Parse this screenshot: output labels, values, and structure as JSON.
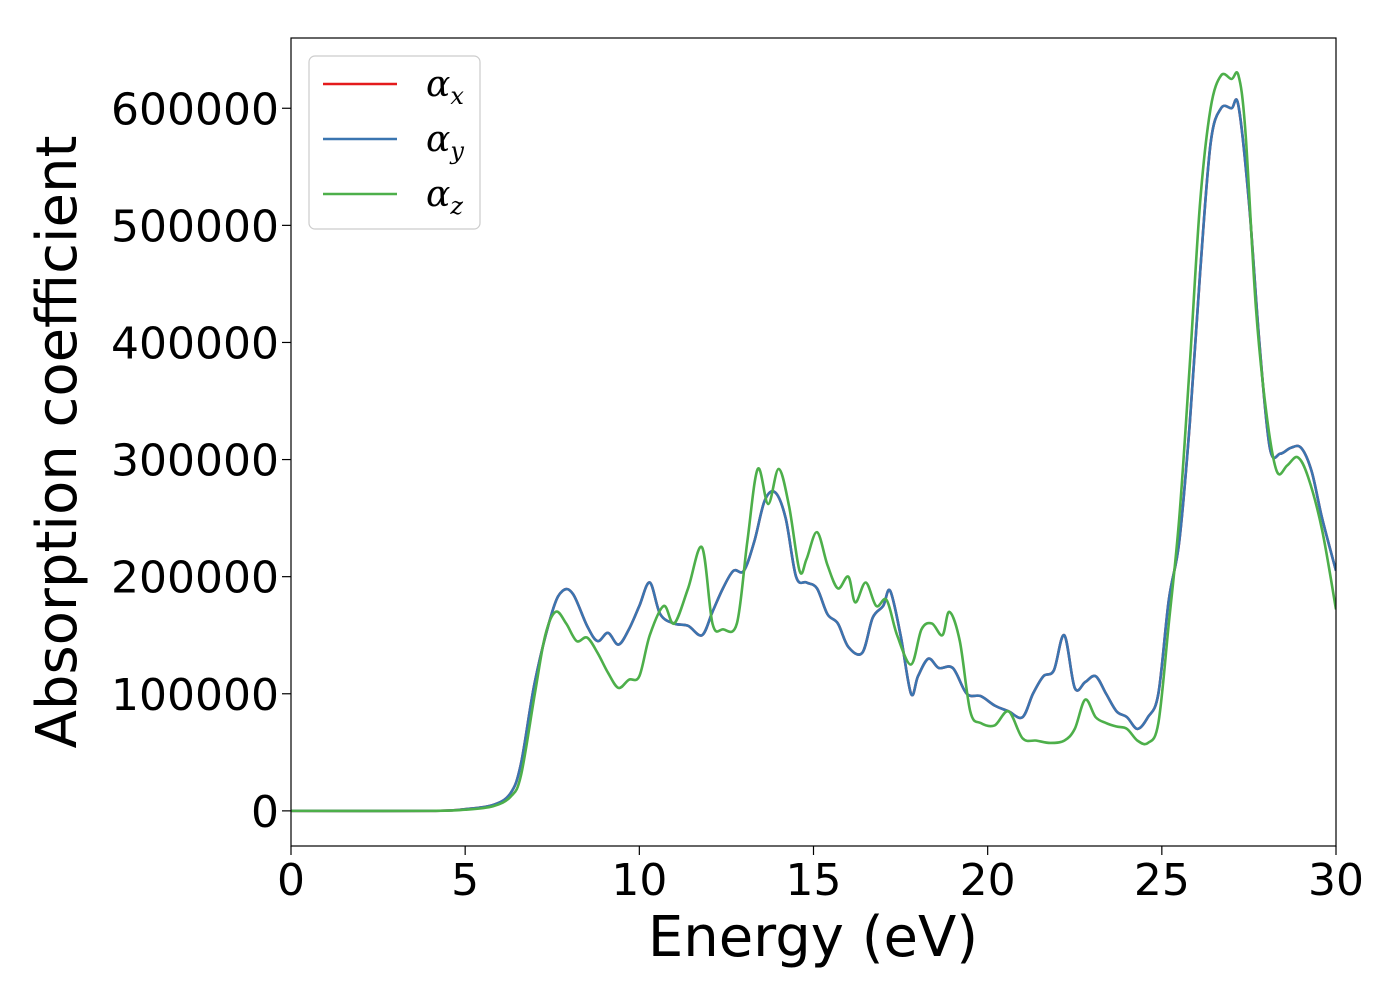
{
  "chart_data": {
    "type": "line",
    "xlabel": "Energy (eV)",
    "ylabel": "Absorption coefficient",
    "xlim": [
      0,
      30
    ],
    "ylim": [
      -30000,
      660000
    ],
    "x_ticks": [
      "0",
      "5",
      "10",
      "15",
      "20",
      "25",
      "30"
    ],
    "y_ticks": [
      "0",
      "100000",
      "200000",
      "300000",
      "400000",
      "500000",
      "600000"
    ],
    "legend_position": "top-left",
    "grid": false,
    "series": [
      {
        "name": "α_x",
        "legend_base": "α",
        "legend_sub": "x",
        "color": "#e41a1c",
        "x": [
          0,
          4,
          5,
          5.8,
          6.3,
          6.6,
          7.0,
          7.5,
          7.8,
          8.1,
          8.5,
          8.8,
          9.1,
          9.4,
          9.7,
          10.0,
          10.3,
          10.6,
          11.0,
          11.4,
          11.8,
          12.1,
          12.4,
          12.7,
          13.0,
          13.3,
          13.6,
          13.9,
          14.2,
          14.5,
          14.8,
          15.1,
          15.4,
          15.7,
          16.0,
          16.4,
          16.7,
          17.0,
          17.2,
          17.5,
          17.8,
          18.0,
          18.3,
          18.6,
          19.0,
          19.4,
          19.8,
          20.2,
          20.6,
          21.0,
          21.3,
          21.6,
          21.9,
          22.2,
          22.5,
          22.8,
          23.1,
          23.4,
          23.7,
          24.0,
          24.3,
          24.6,
          24.9,
          25.2,
          25.5,
          25.8,
          26.1,
          26.4,
          26.7,
          27.0,
          27.2,
          27.5,
          27.8,
          28.1,
          28.4,
          28.7,
          29.0,
          29.3,
          29.6,
          30.0
        ],
        "y": [
          0,
          0,
          1500,
          5000,
          15000,
          40000,
          110000,
          170000,
          188000,
          185000,
          158000,
          145000,
          152000,
          142000,
          155000,
          175000,
          195000,
          168000,
          160000,
          158000,
          150000,
          170000,
          190000,
          205000,
          205000,
          230000,
          265000,
          272000,
          250000,
          200000,
          195000,
          190000,
          168000,
          160000,
          140000,
          135000,
          165000,
          175000,
          188000,
          150000,
          100000,
          115000,
          130000,
          122000,
          122000,
          100000,
          98000,
          90000,
          85000,
          80000,
          100000,
          115000,
          120000,
          150000,
          105000,
          110000,
          115000,
          100000,
          85000,
          80000,
          70000,
          80000,
          100000,
          180000,
          230000,
          330000,
          460000,
          570000,
          600000,
          600000,
          602000,
          520000,
          400000,
          310000,
          305000,
          310000,
          310000,
          290000,
          250000,
          205000
        ]
      },
      {
        "name": "α_y",
        "legend_base": "α",
        "legend_sub": "y",
        "color": "#3a75b0",
        "x": [
          0,
          4,
          5,
          5.8,
          6.3,
          6.6,
          7.0,
          7.5,
          7.8,
          8.1,
          8.5,
          8.8,
          9.1,
          9.4,
          9.7,
          10.0,
          10.3,
          10.6,
          11.0,
          11.4,
          11.8,
          12.1,
          12.4,
          12.7,
          13.0,
          13.3,
          13.6,
          13.9,
          14.2,
          14.5,
          14.8,
          15.1,
          15.4,
          15.7,
          16.0,
          16.4,
          16.7,
          17.0,
          17.2,
          17.5,
          17.8,
          18.0,
          18.3,
          18.6,
          19.0,
          19.4,
          19.8,
          20.2,
          20.6,
          21.0,
          21.3,
          21.6,
          21.9,
          22.2,
          22.5,
          22.8,
          23.1,
          23.4,
          23.7,
          24.0,
          24.3,
          24.6,
          24.9,
          25.2,
          25.5,
          25.8,
          26.1,
          26.4,
          26.7,
          27.0,
          27.2,
          27.5,
          27.8,
          28.1,
          28.4,
          28.7,
          29.0,
          29.3,
          29.6,
          30.0
        ],
        "y": [
          0,
          0,
          1500,
          5000,
          15000,
          40000,
          110000,
          170000,
          188000,
          185000,
          158000,
          145000,
          152000,
          142000,
          155000,
          175000,
          195000,
          168000,
          160000,
          158000,
          150000,
          170000,
          190000,
          205000,
          205000,
          230000,
          265000,
          272000,
          250000,
          200000,
          195000,
          190000,
          168000,
          160000,
          140000,
          135000,
          165000,
          175000,
          188000,
          150000,
          100000,
          115000,
          130000,
          122000,
          122000,
          100000,
          98000,
          90000,
          85000,
          80000,
          100000,
          115000,
          120000,
          150000,
          105000,
          110000,
          115000,
          100000,
          85000,
          80000,
          70000,
          80000,
          100000,
          180000,
          230000,
          330000,
          460000,
          570000,
          600000,
          600000,
          602000,
          520000,
          400000,
          310000,
          305000,
          310000,
          310000,
          290000,
          250000,
          205000
        ]
      },
      {
        "name": "α_z",
        "legend_base": "α",
        "legend_sub": "z",
        "color": "#4daf4a",
        "x": [
          0,
          4,
          5,
          5.8,
          6.3,
          6.6,
          7.0,
          7.3,
          7.6,
          7.9,
          8.2,
          8.5,
          8.8,
          9.1,
          9.4,
          9.7,
          10.0,
          10.3,
          10.7,
          11.0,
          11.4,
          11.8,
          12.1,
          12.4,
          12.8,
          13.1,
          13.4,
          13.7,
          14.0,
          14.3,
          14.6,
          14.8,
          15.1,
          15.4,
          15.7,
          16.0,
          16.2,
          16.5,
          16.8,
          17.1,
          17.4,
          17.8,
          18.1,
          18.4,
          18.7,
          18.9,
          19.2,
          19.5,
          19.8,
          20.2,
          20.6,
          21.0,
          21.4,
          21.8,
          22.2,
          22.5,
          22.8,
          23.1,
          23.4,
          23.7,
          24.0,
          24.3,
          24.6,
          24.9,
          25.2,
          25.5,
          25.8,
          26.1,
          26.4,
          26.7,
          27.0,
          27.2,
          27.4,
          27.7,
          28.0,
          28.3,
          28.6,
          28.9,
          29.2,
          29.6,
          30.0
        ],
        "y": [
          0,
          0,
          1000,
          4000,
          12000,
          30000,
          100000,
          150000,
          170000,
          160000,
          145000,
          148000,
          135000,
          118000,
          105000,
          112000,
          115000,
          150000,
          175000,
          160000,
          190000,
          225000,
          160000,
          155000,
          160000,
          230000,
          292000,
          262000,
          292000,
          260000,
          205000,
          215000,
          238000,
          210000,
          190000,
          200000,
          178000,
          195000,
          175000,
          180000,
          150000,
          125000,
          155000,
          160000,
          150000,
          170000,
          145000,
          85000,
          75000,
          73000,
          85000,
          62000,
          60000,
          58000,
          60000,
          70000,
          95000,
          80000,
          75000,
          72000,
          70000,
          60000,
          58000,
          75000,
          160000,
          250000,
          380000,
          520000,
          600000,
          628000,
          625000,
          628000,
          580000,
          430000,
          340000,
          290000,
          295000,
          302000,
          285000,
          240000,
          172000
        ]
      }
    ]
  }
}
